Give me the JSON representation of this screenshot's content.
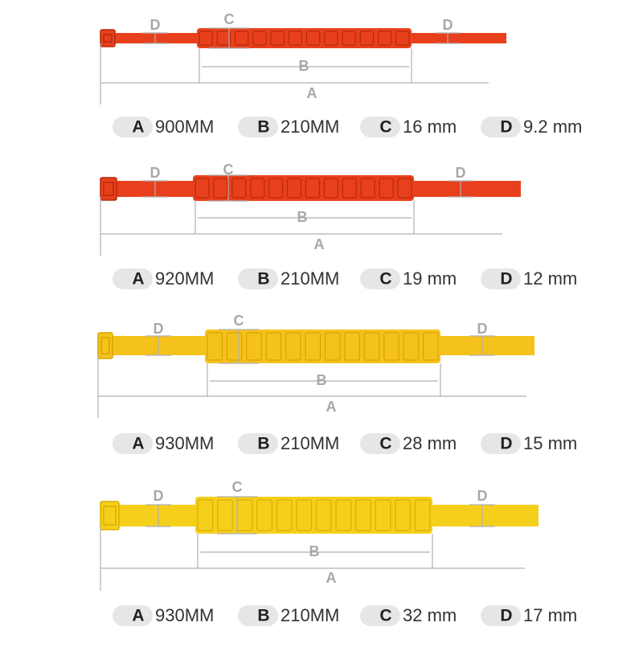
{
  "products": [
    {
      "labels": {
        "d_left": "D",
        "c": "C",
        "d_right": "D",
        "b": "B",
        "a": "A"
      },
      "specs": [
        {
          "key": "A",
          "value": "900MM"
        },
        {
          "key": "B",
          "value": "210MM"
        },
        {
          "key": "C",
          "value": "16 mm"
        },
        {
          "key": "D",
          "value": "9.2 mm"
        }
      ]
    },
    {
      "labels": {
        "d_left": "D",
        "c": "C",
        "d_right": "D",
        "b": "B",
        "a": "A"
      },
      "specs": [
        {
          "key": "A",
          "value": "920MM"
        },
        {
          "key": "B",
          "value": "210MM"
        },
        {
          "key": "C",
          "value": "19 mm"
        },
        {
          "key": "D",
          "value": "12 mm"
        }
      ]
    },
    {
      "labels": {
        "d_left": "D",
        "c": "C",
        "d_right": "D",
        "b": "B",
        "a": "A"
      },
      "specs": [
        {
          "key": "A",
          "value": "930MM"
        },
        {
          "key": "B",
          "value": "210MM"
        },
        {
          "key": "C",
          "value": "28 mm"
        },
        {
          "key": "D",
          "value": "15 mm"
        }
      ]
    },
    {
      "labels": {
        "d_left": "D",
        "c": "C",
        "d_right": "D",
        "b": "B",
        "a": "A"
      },
      "specs": [
        {
          "key": "A",
          "value": "930MM"
        },
        {
          "key": "B",
          "value": "210MM"
        },
        {
          "key": "C",
          "value": "32 mm"
        },
        {
          "key": "D",
          "value": "17 mm"
        }
      ]
    }
  ]
}
